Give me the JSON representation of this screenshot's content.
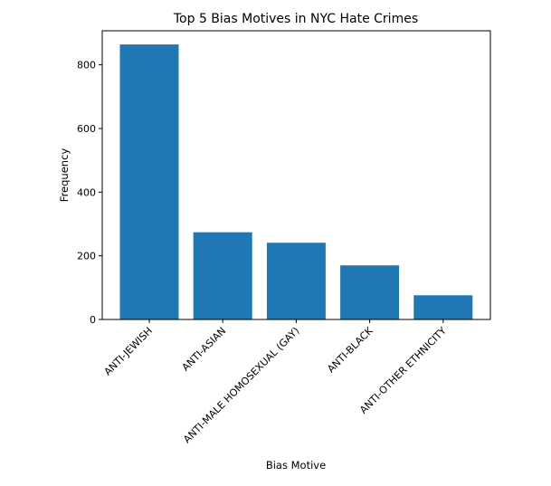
{
  "chart_data": {
    "type": "bar",
    "title": "Top 5 Bias Motives in NYC Hate Crimes",
    "xlabel": "Bias Motive",
    "ylabel": "Frequency",
    "categories": [
      "ANTI-JEWISH",
      "ANTI-ASIAN",
      "ANTI-MALE HOMOSEXUAL (GAY)",
      "ANTI-BLACK",
      "ANTI-OTHER ETHNICITY"
    ],
    "values": [
      864,
      274,
      241,
      170,
      76
    ],
    "ylim": [
      0,
      907
    ],
    "yticks": [
      0,
      200,
      400,
      600,
      800
    ],
    "bar_color": "#1f77b4",
    "grid": false,
    "legend": "none"
  }
}
